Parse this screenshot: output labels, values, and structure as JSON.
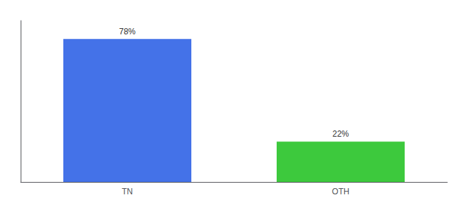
{
  "chart_data": {
    "type": "bar",
    "categories": [
      "TN",
      "OTH"
    ],
    "values": [
      78,
      22
    ],
    "value_labels": [
      "78%",
      "22%"
    ],
    "data_labels": true,
    "colors": [
      "#4472e8",
      "#3dc93d"
    ],
    "ylim": [
      0,
      88
    ],
    "tick_labels": "x",
    "grid": false
  }
}
